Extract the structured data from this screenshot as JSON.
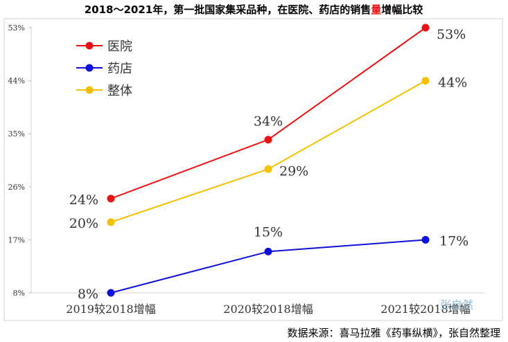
{
  "chart_data": {
    "type": "line",
    "title_parts": [
      "2018～2021年，第一批国家集采品种，在医院、药店的销售",
      "量",
      "增幅比较"
    ],
    "categories": [
      "2019较2018增幅",
      "2020较2018增幅",
      "2021较2018增幅"
    ],
    "series": [
      {
        "name": "医院",
        "color": "#ee1111",
        "values": [
          24,
          34,
          53
        ],
        "labels": [
          "24%",
          "34%",
          "53%"
        ]
      },
      {
        "name": "药店",
        "color": "#1010dd",
        "values": [
          8,
          15,
          17
        ],
        "labels": [
          "8%",
          "15%",
          "17%"
        ]
      },
      {
        "name": "整体",
        "color": "#f5c000",
        "values": [
          20,
          29,
          44
        ],
        "labels": [
          "20%",
          "29%",
          "44%"
        ]
      }
    ],
    "y_ticks": [
      8,
      17,
      26,
      35,
      44,
      53
    ],
    "y_tick_labels": [
      "8%",
      "17%",
      "26%",
      "35%",
      "44%",
      "53%"
    ],
    "ylim": [
      8,
      53
    ],
    "legend_position": "top-left",
    "grid": false,
    "watermark": "张自然",
    "source": "数据来源：喜马拉雅《药事纵横》，张自然整理"
  }
}
